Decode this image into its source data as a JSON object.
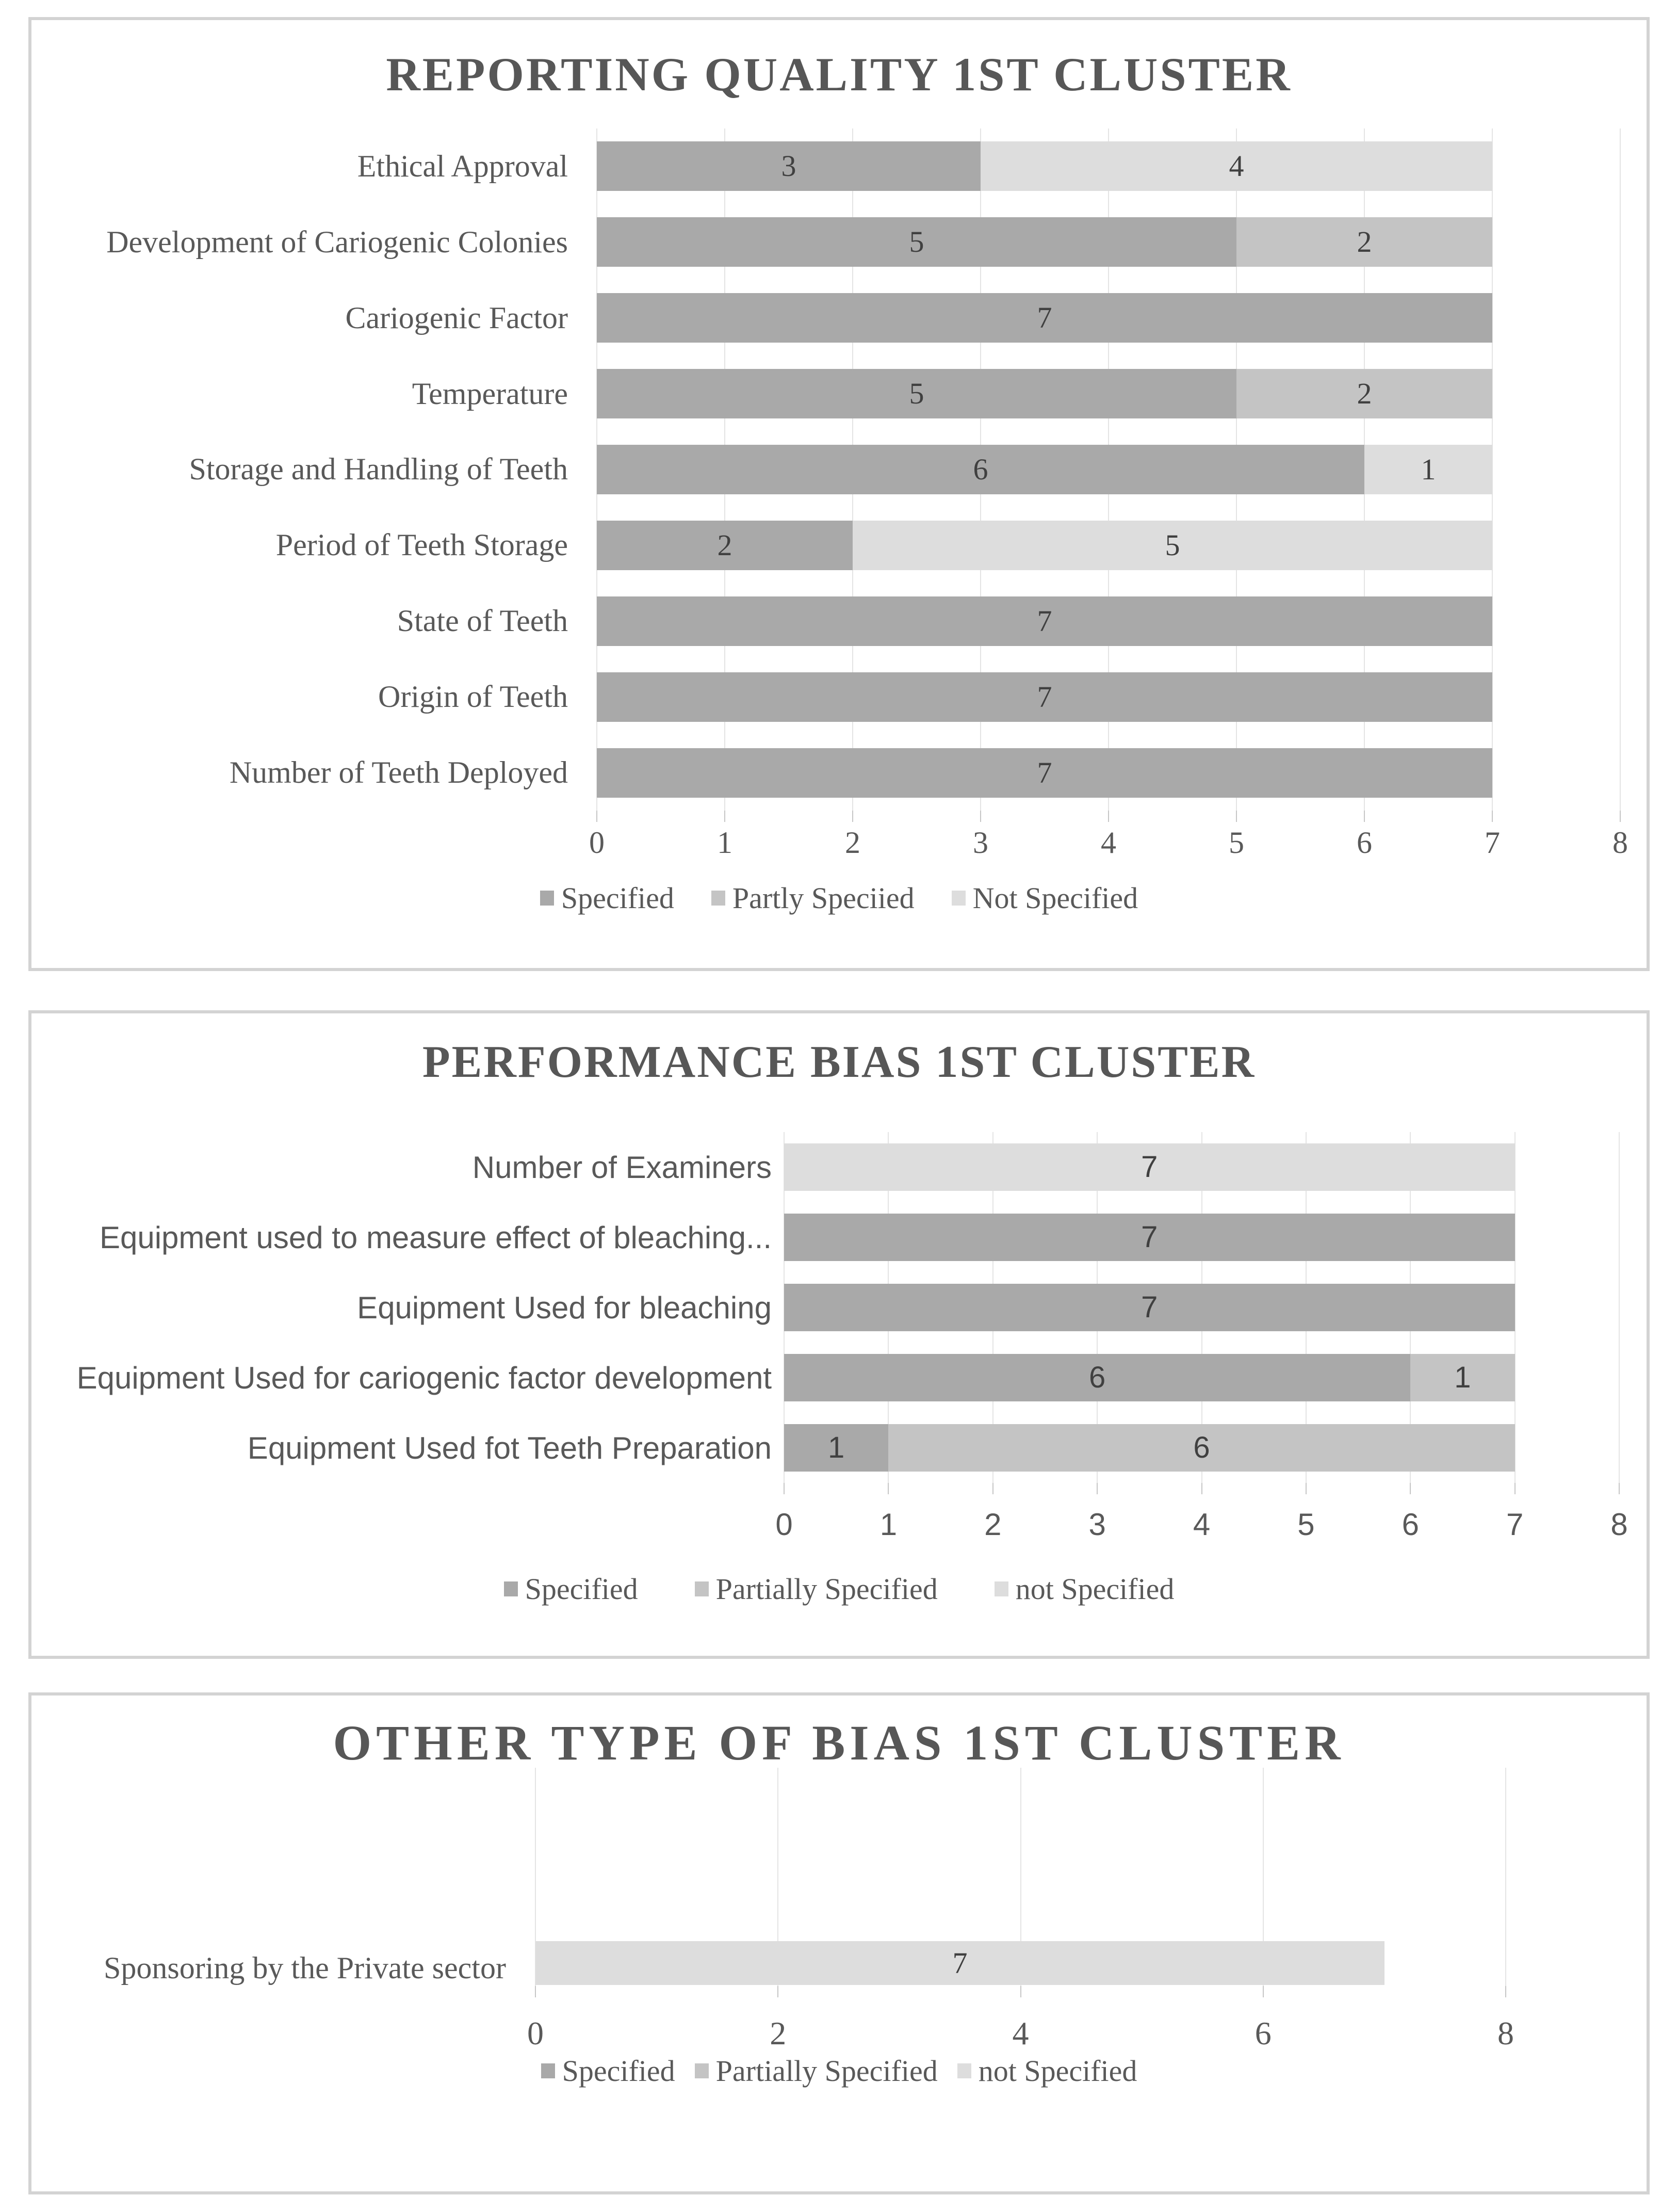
{
  "page": {
    "background": "#ffffff"
  },
  "colors": {
    "specified": "#a9a9a9",
    "partly": "#c4c4c4",
    "not": "#dddddd",
    "gridline": "#e4e4e4",
    "tick": "#c6c6c6",
    "text": "#595959",
    "value_label": "#404040",
    "title": "#575757",
    "panel_border": "#d3d3d3"
  },
  "chart_data": [
    {
      "type": "bar",
      "orientation": "horizontal",
      "stacked": true,
      "title": "REPORTING QUALITY 1ST CLUSTER",
      "xlabel": "",
      "ylabel": "",
      "xlim": [
        0,
        8
      ],
      "xticks": [
        0,
        1,
        2,
        3,
        4,
        5,
        6,
        7,
        8
      ],
      "grid": true,
      "legend_position": "bottom",
      "categories": [
        "Ethical Approval",
        "Development of Cariogenic Colonies",
        "Cariogenic Factor",
        "Temperature",
        "Storage and Handling of Teeth",
        "Period of Teeth Storage",
        "State of Teeth",
        "Origin of Teeth",
        "Number of Teeth Deployed"
      ],
      "series": [
        {
          "name": "Specified",
          "color_key": "specified",
          "values": [
            3,
            5,
            7,
            5,
            6,
            2,
            7,
            7,
            7
          ]
        },
        {
          "name": "Partly Speciied",
          "color_key": "partly",
          "values": [
            0,
            2,
            0,
            2,
            0,
            0,
            0,
            0,
            0
          ]
        },
        {
          "name": "Not Specified",
          "color_key": "not",
          "values": [
            4,
            0,
            0,
            0,
            1,
            5,
            0,
            0,
            0
          ]
        }
      ],
      "legend": [
        "Specified",
        "Partly Speciied",
        "Not Specified"
      ]
    },
    {
      "type": "bar",
      "orientation": "horizontal",
      "stacked": true,
      "title": "PERFORMANCE BIAS 1ST CLUSTER",
      "xlabel": "",
      "ylabel": "",
      "xlim": [
        0,
        8
      ],
      "xticks": [
        0,
        1,
        2,
        3,
        4,
        5,
        6,
        7,
        8
      ],
      "grid": true,
      "legend_position": "bottom",
      "categories": [
        "Number of Examiners",
        "Equipment used to measure effect of bleaching...",
        "Equipment Used for bleaching",
        "Equipment Used for cariogenic factor development",
        "Equipment Used fot Teeth Preparation"
      ],
      "series": [
        {
          "name": "Specified",
          "color_key": "specified",
          "values": [
            0,
            7,
            7,
            6,
            1
          ]
        },
        {
          "name": "Partially Specified",
          "color_key": "partly",
          "values": [
            0,
            0,
            0,
            1,
            6
          ]
        },
        {
          "name": "not Specified",
          "color_key": "not",
          "values": [
            7,
            0,
            0,
            0,
            0
          ]
        }
      ],
      "legend": [
        "Specified",
        "Partially Specified",
        "not Specified"
      ]
    },
    {
      "type": "bar",
      "orientation": "horizontal",
      "stacked": true,
      "title": "OTHER TYPE OF BIAS 1ST CLUSTER",
      "xlabel": "",
      "ylabel": "",
      "xlim": [
        0,
        8
      ],
      "xticks": [
        0,
        2,
        4,
        6,
        8
      ],
      "grid": true,
      "legend_position": "bottom",
      "categories": [
        "Sponsoring by the Private sector"
      ],
      "series": [
        {
          "name": "Specified",
          "color_key": "specified",
          "values": [
            0
          ]
        },
        {
          "name": "Partially Specified",
          "color_key": "partly",
          "values": [
            0
          ]
        },
        {
          "name": "not Specified",
          "color_key": "not",
          "values": [
            7
          ]
        }
      ],
      "legend": [
        "Specified",
        "Partially Specified",
        "not Specified"
      ]
    }
  ]
}
